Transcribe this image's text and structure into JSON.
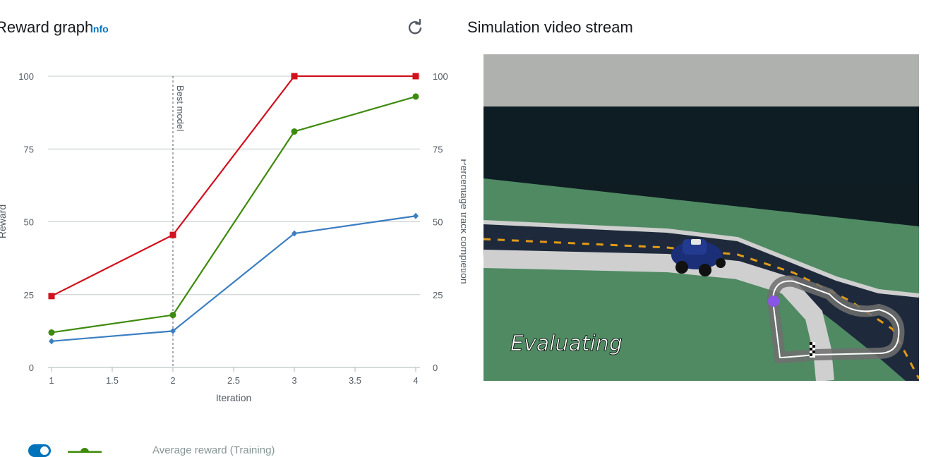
{
  "reward_panel": {
    "title": "Reward graph",
    "info_label": "Info"
  },
  "video_panel": {
    "title": "Simulation video stream",
    "overlay_text": "Evaluating"
  },
  "legend": {
    "label": "Average reward (Training)"
  },
  "colors": {
    "average_reward_training": "#3b7ec2",
    "average_percentage_completion_training": "#3e8a0c",
    "average_percentage_completion_evaluating": "#d1111d",
    "accent": "#0073bb"
  },
  "chart_data": {
    "type": "line",
    "xlabel": "Iteration",
    "ylabel": "Reward",
    "y2label": "Percentage track completion",
    "x_ticks": [
      "1",
      "1.5",
      "2",
      "2.5",
      "3",
      "3.5",
      "4"
    ],
    "y_ticks": [
      "0",
      "25",
      "50",
      "75",
      "100"
    ],
    "xlim": [
      1,
      4
    ],
    "ylim": [
      0,
      100
    ],
    "y2lim": [
      0,
      100
    ],
    "grid": true,
    "annotation": {
      "label": "Best model",
      "x": 2
    },
    "series": [
      {
        "name": "Average reward (Training)",
        "marker": "diamond",
        "color": "#3b7ec2",
        "x": [
          1,
          2,
          3,
          4
        ],
        "y": [
          9,
          12.5,
          46,
          52
        ]
      },
      {
        "marker": "circle",
        "color": "#3e8a0c",
        "x": [
          1,
          2,
          3,
          4
        ],
        "y": [
          12,
          18,
          81,
          93
        ]
      },
      {
        "marker": "square",
        "color": "#d1111d",
        "x": [
          1,
          2,
          3,
          4
        ],
        "y": [
          24.5,
          45.5,
          100,
          100
        ]
      }
    ]
  }
}
